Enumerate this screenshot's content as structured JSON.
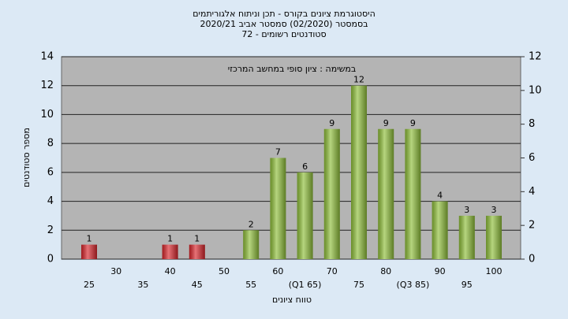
{
  "chart_data": {
    "type": "bar",
    "title": [
      "היסטוגרמת ציונים בקורס - תכן וניתוח אלגוריתמים",
      "בסמסטר  (02/2020)  סמסטר אביב 2020/21",
      "סטודנטים רשומים - 72"
    ],
    "annotation": "במשימה : ציון סופי במחשב המרכזי",
    "xlabel": "טווח ציונים",
    "ylabel": "מספר סטודנטים",
    "categories": [
      "25",
      "30",
      "35",
      "40",
      "45",
      "50",
      "55",
      "60",
      "(Q1 65)",
      "70",
      "75",
      "80",
      "(Q3 85)",
      "90",
      "95",
      "100"
    ],
    "values": [
      1,
      0,
      0,
      1,
      1,
      0,
      2,
      7,
      6,
      9,
      12,
      9,
      9,
      4,
      3,
      3
    ],
    "colors": [
      "#d9262c",
      "#d9262c",
      "#d9262c",
      "#d9262c",
      "#d9262c",
      "#d9262c",
      "#8fbf3a",
      "#8fbf3a",
      "#8fbf3a",
      "#8fbf3a",
      "#8fbf3a",
      "#8fbf3a",
      "#8fbf3a",
      "#8fbf3a",
      "#8fbf3a",
      "#8fbf3a"
    ],
    "ylim": [
      0,
      14
    ],
    "yticks": [
      0,
      2,
      4,
      6,
      8,
      10,
      12,
      14
    ],
    "y2lim": [
      0,
      12
    ],
    "y2ticks": [
      0,
      2,
      4,
      6,
      8,
      10,
      12
    ],
    "grid": true
  }
}
